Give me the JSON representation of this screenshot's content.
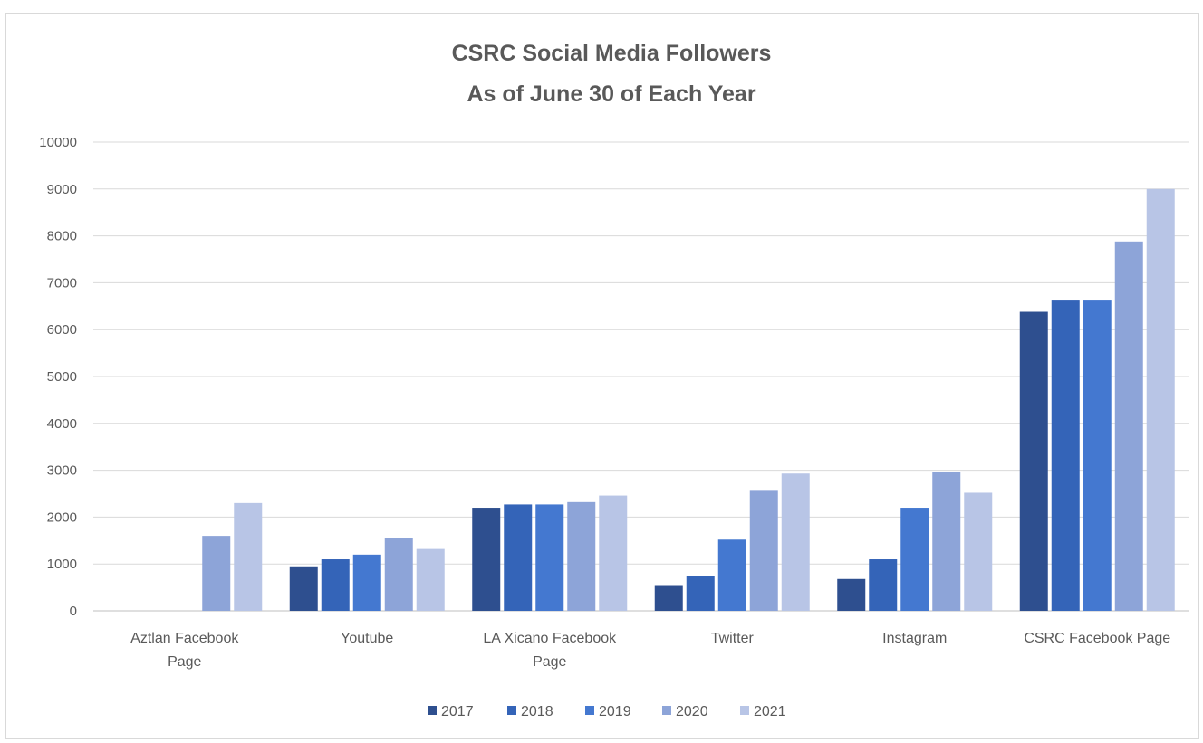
{
  "chart_data": {
    "type": "bar",
    "title": [
      "CSRC Social Media Followers",
      "As of June 30 of Each Year"
    ],
    "categories": [
      [
        "Aztlan Facebook",
        "Page"
      ],
      [
        "Youtube"
      ],
      [
        "LA Xicano Facebook",
        "Page"
      ],
      [
        "Twitter"
      ],
      [
        "Instagram"
      ],
      [
        "CSRC Facebook Page"
      ]
    ],
    "series": [
      {
        "name": "2017",
        "color": "#2e4f8f",
        "values": [
          0,
          950,
          2200,
          550,
          680,
          6380
        ]
      },
      {
        "name": "2018",
        "color": "#3464b8",
        "values": [
          0,
          1100,
          2270,
          750,
          1100,
          6620
        ]
      },
      {
        "name": "2019",
        "color": "#4478d0",
        "values": [
          0,
          1200,
          2270,
          1520,
          2200,
          6620
        ]
      },
      {
        "name": "2020",
        "color": "#8da4d8",
        "values": [
          1600,
          1550,
          2320,
          2580,
          2970,
          7880
        ]
      },
      {
        "name": "2021",
        "color": "#b8c5e6",
        "values": [
          2300,
          1320,
          2460,
          2930,
          2520,
          9000
        ]
      }
    ],
    "ylim": [
      0,
      10000
    ],
    "yticks": [
      "0",
      "1000",
      "2000",
      "3000",
      "4000",
      "5000",
      "6000",
      "7000",
      "8000",
      "9000",
      "10000"
    ],
    "grid": true,
    "legend_position": "bottom"
  }
}
